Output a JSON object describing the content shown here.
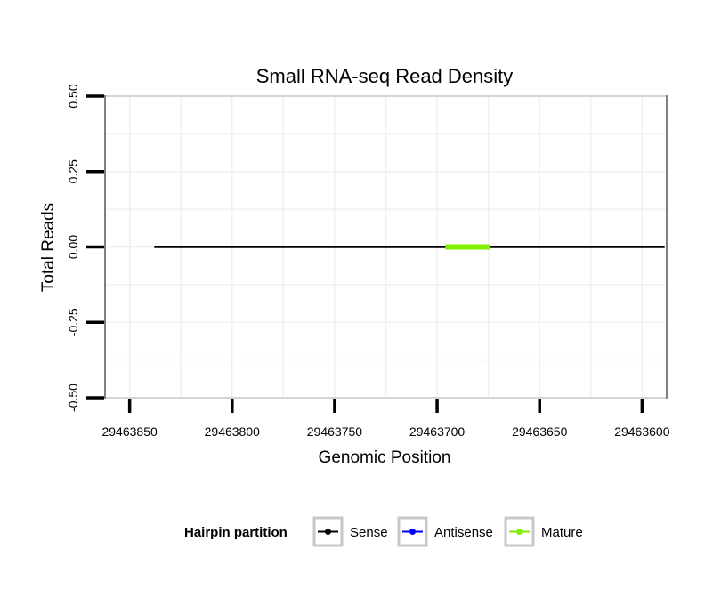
{
  "chart_data": {
    "type": "line",
    "title": "Small RNA-seq Read Density",
    "xlabel": "Genomic Position",
    "ylabel": "Total Reads",
    "xlim": [
      29463862,
      29463588
    ],
    "ylim": [
      -0.5,
      0.5
    ],
    "x_reversed": true,
    "x_ticks": [
      29463850,
      29463800,
      29463750,
      29463700,
      29463650,
      29463600
    ],
    "x_tick_labels": [
      "29463850",
      "29463800",
      "29463750",
      "29463700",
      "29463650",
      "29463600"
    ],
    "y_ticks": [
      0.5,
      0.25,
      0.0,
      -0.25,
      -0.5
    ],
    "y_tick_labels": [
      "0.50",
      "0.25",
      "0.00",
      "-0.25",
      "-0.50"
    ],
    "grid": true,
    "series": [
      {
        "name": "Sense",
        "color": "#000000",
        "x": [
          29463838,
          29463589
        ],
        "values": [
          0,
          0
        ]
      },
      {
        "name": "Antisense",
        "color": "#0000ff",
        "x": [
          29463838,
          29463589
        ],
        "values": [
          0,
          0
        ]
      },
      {
        "name": "Mature",
        "color": "#80ef00",
        "x": [
          29463696,
          29463674
        ],
        "values": [
          0,
          0
        ]
      }
    ],
    "legend": {
      "title": "Hairpin partition",
      "position": "bottom",
      "entries": [
        "Sense",
        "Antisense",
        "Mature"
      ]
    }
  }
}
